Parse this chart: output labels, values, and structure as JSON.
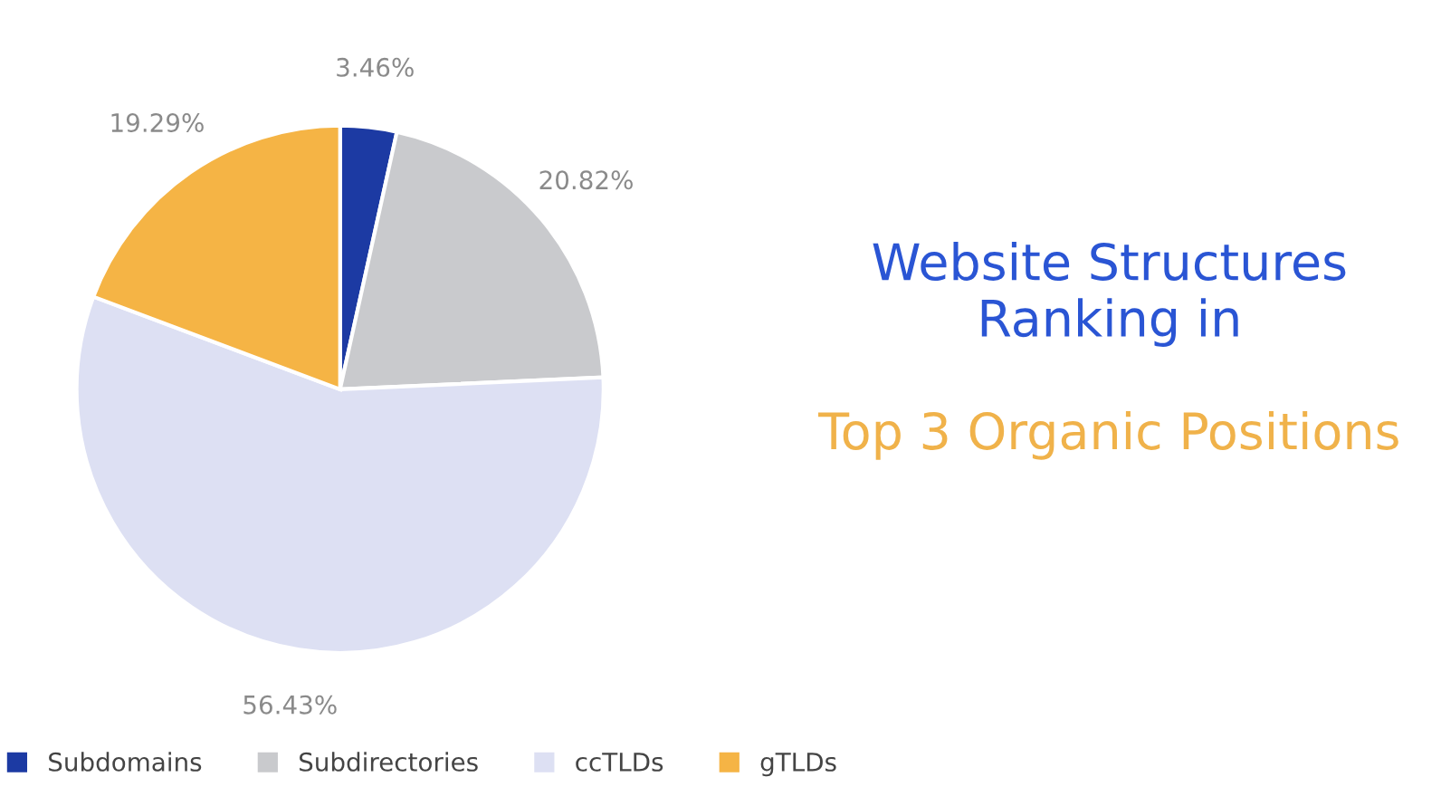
{
  "chart_data": {
    "type": "pie",
    "title": "Website Structures Ranking in",
    "subtitle": "Top 3 Organic Positions",
    "categories": [
      "Subdomains",
      "Subdirectories",
      "ccTLDs",
      "gTLDs"
    ],
    "values": [
      3.46,
      20.82,
      56.43,
      19.29
    ],
    "colors": [
      "#1c3aa3",
      "#c9cacd",
      "#dde0f3",
      "#f5b445"
    ],
    "value_labels": [
      "3.46%",
      "20.82%",
      "56.43%",
      "19.29%"
    ],
    "legend": "bottom"
  }
}
